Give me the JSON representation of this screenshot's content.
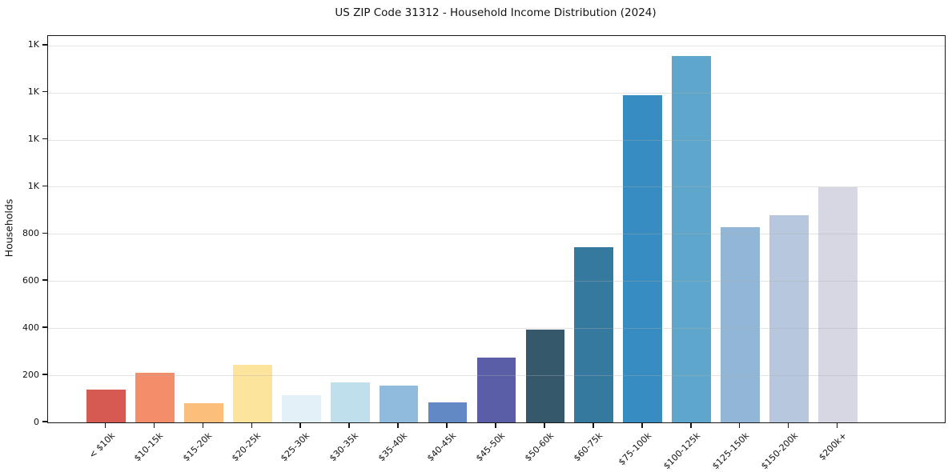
{
  "chart_data": {
    "type": "bar",
    "title": "US ZIP Code 31312 - Household Income Distribution (2024)",
    "xlabel": "",
    "ylabel": "Households",
    "categories": [
      "< $10k",
      "$10-15k",
      "$15-20k",
      "$20-25k",
      "$25-30k",
      "$30-35k",
      "$35-40k",
      "$40-45k",
      "$45-50k",
      "$50-60k",
      "$60-75k",
      "$75-100k",
      "$100-125k",
      "$125-150k",
      "$150-200k",
      "$200k+"
    ],
    "values": [
      140,
      210,
      80,
      245,
      115,
      170,
      155,
      85,
      275,
      395,
      745,
      1390,
      1555,
      830,
      880,
      1000
    ],
    "bar_colors": [
      "#d65a52",
      "#f38d6a",
      "#fbbf7b",
      "#fde49c",
      "#e4f0f8",
      "#c0dfec",
      "#90bbdc",
      "#6389c4",
      "#5a5ea7",
      "#35596b",
      "#35799e",
      "#378cc1",
      "#5fa6cc",
      "#92b6d5",
      "#b7c8de",
      "#d6d7e3"
    ],
    "ylim": [
      0,
      1640
    ],
    "yticks": [
      {
        "value": 0,
        "label": "0"
      },
      {
        "value": 200,
        "label": "200"
      },
      {
        "value": 400,
        "label": "400"
      },
      {
        "value": 600,
        "label": "600"
      },
      {
        "value": 800,
        "label": "800"
      },
      {
        "value": 1000,
        "label": "1K"
      },
      {
        "value": 1200,
        "label": "1K"
      },
      {
        "value": 1400,
        "label": "1K"
      },
      {
        "value": 1600,
        "label": "1K"
      }
    ],
    "grid": "horizontal",
    "grid_color": "rgba(176,176,176,0.35)",
    "legend": "none",
    "background": "#ffffff",
    "spine_color": "#161616",
    "text_color": "#131313"
  }
}
